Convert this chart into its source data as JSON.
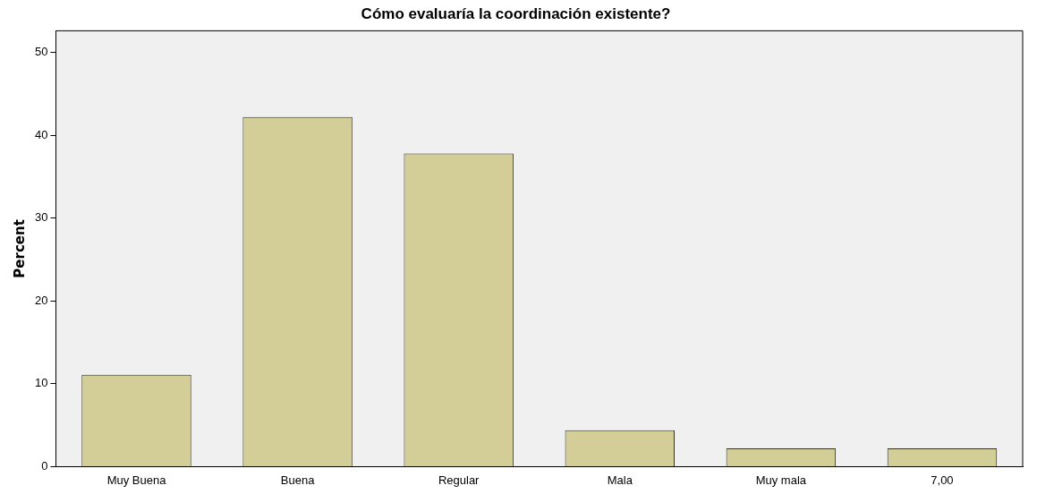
{
  "chart_data": {
    "type": "bar",
    "title": "Cómo evaluaría la coordinación existente?",
    "ylabel": "Percent",
    "categories": [
      "Muy Buena",
      "Buena",
      "Regular",
      "Mala",
      "Muy mala",
      "7,00"
    ],
    "values": [
      11.1,
      42.2,
      37.8,
      4.4,
      2.2,
      2.2
    ],
    "color": "#d3ce98",
    "ylim": [
      0,
      52.6
    ],
    "yticks": [
      0,
      10,
      20,
      30,
      40,
      50
    ],
    "grid": false,
    "legend": false
  }
}
